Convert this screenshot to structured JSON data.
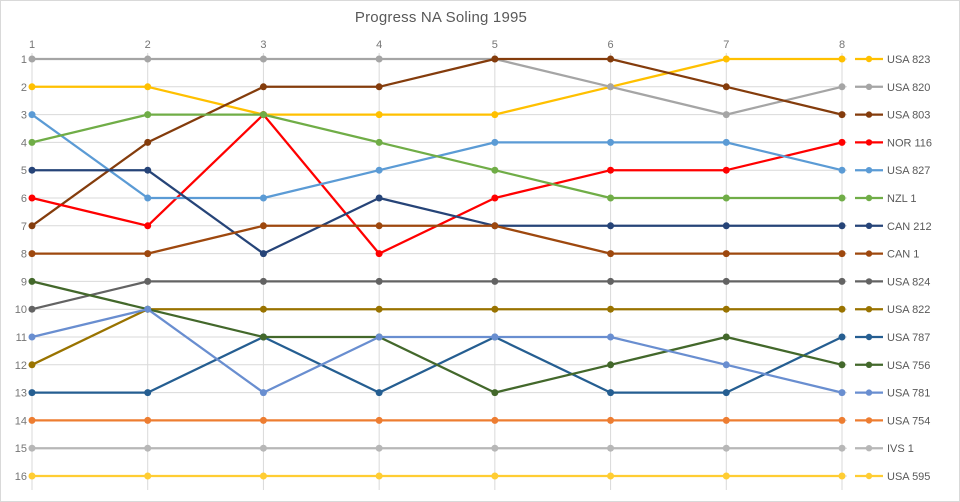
{
  "chart_data": {
    "type": "line",
    "title": "Progress NA Soling 1995",
    "xlabel": "",
    "ylabel": "",
    "x": [
      1,
      2,
      3,
      4,
      5,
      6,
      7,
      8
    ],
    "x_axis_position": "top",
    "y_axis": {
      "min": 1,
      "max": 16,
      "step": 1,
      "reversed": true
    },
    "grid": true,
    "legend_position": "right",
    "colors": {
      "grid_line": "#d9d9d9",
      "tick_label": "#757575",
      "legend_label": "#595959",
      "title": "#595959",
      "background": "#ffffff"
    },
    "series": [
      {
        "name": "USA 823",
        "color": "#FFC000",
        "values": [
          2,
          2,
          3,
          3,
          3,
          2,
          1,
          1
        ]
      },
      {
        "name": "USA 820",
        "color": "#A5A5A5",
        "values": [
          1,
          1,
          1,
          1,
          1,
          2,
          3,
          2
        ]
      },
      {
        "name": "USA 803",
        "color": "#843C0C",
        "values": [
          7,
          4,
          2,
          2,
          1,
          1,
          2,
          3
        ]
      },
      {
        "name": "NOR 116",
        "color": "#FF0000",
        "values": [
          6,
          7,
          3,
          8,
          6,
          5,
          5,
          4
        ]
      },
      {
        "name": "USA 827",
        "color": "#5B9BD5",
        "values": [
          3,
          6,
          6,
          5,
          4,
          4,
          4,
          5
        ]
      },
      {
        "name": "NZL 1",
        "color": "#70AD47",
        "values": [
          4,
          3,
          3,
          4,
          5,
          6,
          6,
          6
        ]
      },
      {
        "name": "CAN 212",
        "color": "#264478",
        "values": [
          5,
          5,
          8,
          6,
          7,
          7,
          7,
          7
        ]
      },
      {
        "name": "CAN 1",
        "color": "#9E480E",
        "values": [
          8,
          8,
          7,
          7,
          7,
          8,
          8,
          8
        ]
      },
      {
        "name": "USA 824",
        "color": "#636363",
        "values": [
          10,
          9,
          9,
          9,
          9,
          9,
          9,
          9
        ]
      },
      {
        "name": "USA 822",
        "color": "#997300",
        "values": [
          12,
          10,
          10,
          10,
          10,
          10,
          10,
          10
        ]
      },
      {
        "name": "USA 787",
        "color": "#255E91",
        "values": [
          13,
          13,
          11,
          13,
          11,
          13,
          13,
          11
        ]
      },
      {
        "name": "USA 756",
        "color": "#43682B",
        "values": [
          9,
          10,
          11,
          11,
          13,
          12,
          11,
          12
        ]
      },
      {
        "name": "USA 781",
        "color": "#698ED0",
        "values": [
          11,
          10,
          13,
          11,
          11,
          11,
          12,
          13
        ]
      },
      {
        "name": "USA 754",
        "color": "#ED7D31",
        "values": [
          14,
          14,
          14,
          14,
          14,
          14,
          14,
          14
        ]
      },
      {
        "name": "IVS 1",
        "color": "#B7B7B7",
        "values": [
          15,
          15,
          15,
          15,
          15,
          15,
          15,
          15
        ]
      },
      {
        "name": "USA 595",
        "color": "#FFCD33",
        "values": [
          16,
          16,
          16,
          16,
          16,
          16,
          16,
          16
        ]
      }
    ]
  }
}
